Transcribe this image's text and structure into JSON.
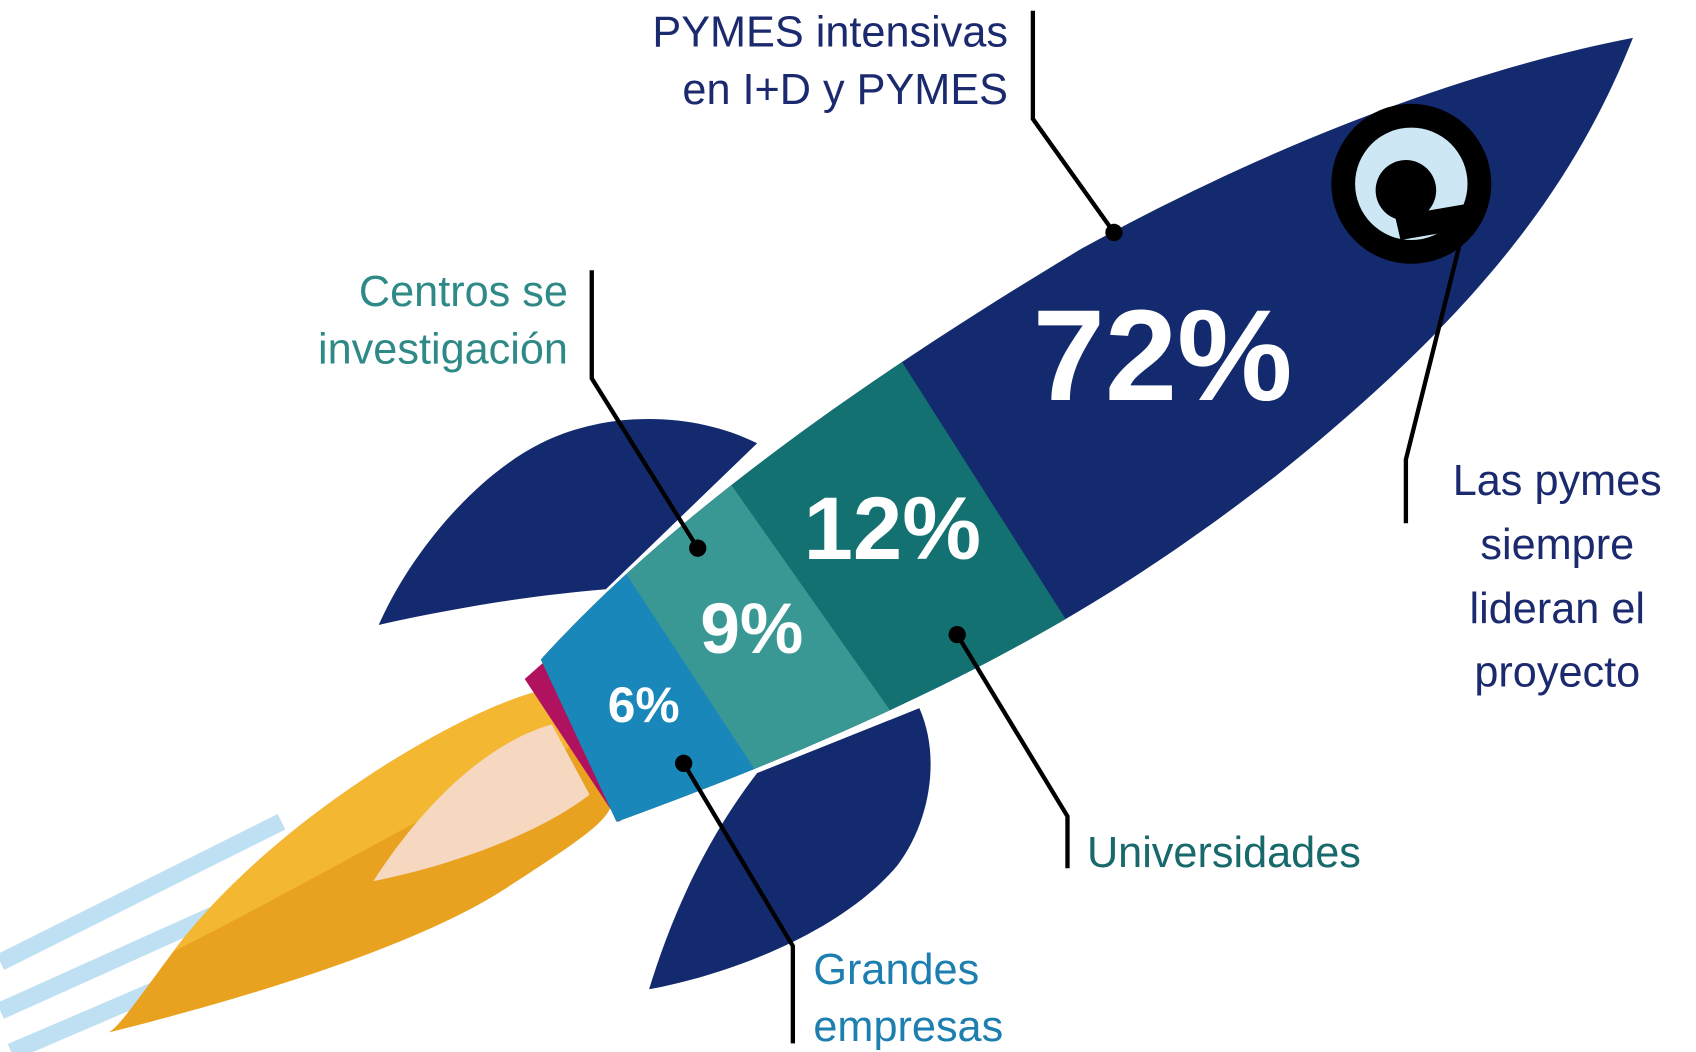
{
  "segments": [
    {
      "label": [
        "PYMES intensivas",
        "en I+D y PYMES"
      ],
      "value": "72%"
    },
    {
      "label": [
        "Universidades"
      ],
      "value": "12%"
    },
    {
      "label": [
        "Centros se",
        "investigación"
      ],
      "value": "9%"
    },
    {
      "label": [
        "Grandes",
        "empresas"
      ],
      "value": "6%"
    }
  ],
  "note": [
    "Las pymes",
    "siempre",
    "lideran el",
    "proyecto"
  ]
}
